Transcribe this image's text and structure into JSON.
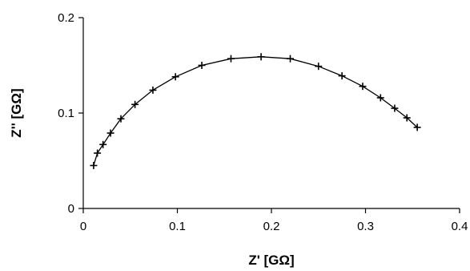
{
  "chart_data": {
    "type": "line",
    "xlabel": "Z' [GΩ]",
    "ylabel": "Z'' [GΩ]",
    "xlim": [
      0,
      0.4
    ],
    "ylim": [
      0,
      0.2
    ],
    "xticks": [
      "0",
      "0.1",
      "0.2",
      "0.3",
      "0.4"
    ],
    "yticks": [
      "0",
      "0.1",
      "0.2"
    ],
    "grid": false,
    "series": [
      {
        "marker": "plus",
        "x": [
          0.011,
          0.015,
          0.021,
          0.029,
          0.04,
          0.055,
          0.074,
          0.098,
          0.126,
          0.157,
          0.189,
          0.22,
          0.25,
          0.275,
          0.297,
          0.316,
          0.331,
          0.344,
          0.355
        ],
        "y": [
          0.045,
          0.058,
          0.067,
          0.079,
          0.094,
          0.109,
          0.124,
          0.138,
          0.15,
          0.157,
          0.159,
          0.157,
          0.149,
          0.139,
          0.128,
          0.116,
          0.105,
          0.095,
          0.085
        ]
      }
    ]
  }
}
